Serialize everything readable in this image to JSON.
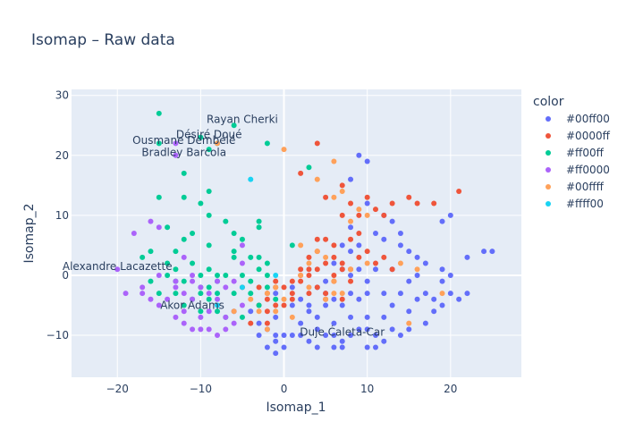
{
  "chart_data": {
    "type": "scatter",
    "title": "Isomap – Raw data",
    "xlabel": "Isomap_1",
    "ylabel": "Isomap_2",
    "xlim": [
      -25.5,
      28.5
    ],
    "ylim": [
      -17,
      31
    ],
    "xticks": [
      -20,
      -10,
      0,
      10,
      20
    ],
    "yticks": [
      -10,
      0,
      10,
      20,
      30
    ],
    "grid": true,
    "legend": {
      "title": "color",
      "placement": "right"
    },
    "series": [
      {
        "name": "#00ff00",
        "color": "#636efa",
        "points": [
          [
            0,
            -10
          ],
          [
            1,
            -10
          ],
          [
            -1,
            -11
          ],
          [
            -2,
            -12
          ],
          [
            -1,
            -13
          ],
          [
            0,
            -12
          ],
          [
            2,
            -10
          ],
          [
            3,
            -11
          ],
          [
            4,
            -9
          ],
          [
            5,
            -10
          ],
          [
            6,
            -10
          ],
          [
            7,
            -11
          ],
          [
            8,
            -10
          ],
          [
            9,
            -9
          ],
          [
            10,
            -9
          ],
          [
            11,
            -10
          ],
          [
            12,
            -11
          ],
          [
            13,
            -9
          ],
          [
            14,
            -10
          ],
          [
            2,
            -8
          ],
          [
            4,
            -7
          ],
          [
            6,
            -8
          ],
          [
            8,
            -7
          ],
          [
            10,
            -7
          ],
          [
            12,
            -7
          ],
          [
            15,
            -6
          ],
          [
            16,
            -4
          ],
          [
            17,
            -3
          ],
          [
            18,
            -4
          ],
          [
            19,
            -5
          ],
          [
            20,
            -3
          ],
          [
            21,
            -4
          ],
          [
            22,
            -3
          ],
          [
            14,
            -3
          ],
          [
            12,
            -3
          ],
          [
            10,
            -3
          ],
          [
            13,
            -5
          ],
          [
            15,
            -9
          ],
          [
            11,
            -12
          ],
          [
            10,
            -12
          ],
          [
            7,
            -12
          ],
          [
            6,
            -12
          ],
          [
            19,
            -1
          ],
          [
            20,
            0
          ],
          [
            22,
            3
          ],
          [
            24,
            4
          ],
          [
            25,
            4
          ],
          [
            19,
            9
          ],
          [
            20,
            10
          ],
          [
            19,
            1
          ],
          [
            17,
            2
          ],
          [
            16,
            3
          ],
          [
            15,
            4
          ],
          [
            14,
            5
          ],
          [
            12,
            6
          ],
          [
            11,
            7
          ],
          [
            13,
            9
          ],
          [
            14,
            7
          ],
          [
            12,
            10
          ],
          [
            10,
            12
          ],
          [
            8,
            8
          ],
          [
            9,
            5
          ],
          [
            9,
            1
          ],
          [
            8,
            0
          ],
          [
            8,
            4
          ],
          [
            7,
            5
          ],
          [
            7,
            1
          ],
          [
            6,
            2
          ],
          [
            10,
            -1
          ],
          [
            11,
            1
          ],
          [
            9,
            -4
          ],
          [
            7,
            -5
          ],
          [
            6,
            -4
          ],
          [
            5,
            -3
          ],
          [
            4,
            -2
          ],
          [
            3,
            -6
          ],
          [
            1,
            -5
          ],
          [
            -1,
            -7
          ],
          [
            -2,
            -9
          ],
          [
            -3,
            -8
          ],
          [
            -4,
            -6
          ],
          [
            -6,
            -6
          ],
          [
            -1,
            -3
          ],
          [
            1,
            -2
          ],
          [
            2,
            -4
          ],
          [
            3,
            -5
          ],
          [
            5,
            -5
          ],
          [
            17,
            -8
          ],
          [
            18,
            -6
          ],
          [
            13,
            1
          ],
          [
            16,
            0
          ],
          [
            15,
            -1
          ],
          [
            8,
            -3
          ],
          [
            4,
            -12
          ],
          [
            -3,
            -10
          ],
          [
            -1,
            -10
          ],
          [
            9,
            20
          ],
          [
            10,
            19
          ],
          [
            8,
            16
          ],
          [
            5,
            -1
          ]
        ]
      },
      {
        "name": "#0000ff",
        "color": "#ef553b",
        "points": [
          [
            4,
            22
          ],
          [
            2,
            17
          ],
          [
            5,
            13
          ],
          [
            7,
            10
          ],
          [
            8,
            12
          ],
          [
            10,
            13
          ],
          [
            11,
            11
          ],
          [
            9,
            10
          ],
          [
            12,
            10
          ],
          [
            13,
            12
          ],
          [
            15,
            13
          ],
          [
            16,
            12
          ],
          [
            18,
            12
          ],
          [
            21,
            14
          ],
          [
            7,
            15
          ],
          [
            5,
            6
          ],
          [
            4,
            6
          ],
          [
            6,
            5
          ],
          [
            8,
            6
          ],
          [
            9,
            7
          ],
          [
            4,
            4
          ],
          [
            3,
            3
          ],
          [
            5,
            2
          ],
          [
            6,
            3
          ],
          [
            3,
            0
          ],
          [
            2,
            -1
          ],
          [
            1,
            -1
          ],
          [
            0,
            -2
          ],
          [
            -1,
            -2
          ],
          [
            -2,
            -4
          ],
          [
            -3,
            -5
          ],
          [
            -1,
            -5
          ],
          [
            -2,
            -6
          ],
          [
            0,
            -5
          ],
          [
            1,
            -3
          ],
          [
            2,
            0
          ],
          [
            3,
            1
          ],
          [
            4,
            -2
          ],
          [
            5,
            -4
          ],
          [
            -2,
            -3
          ],
          [
            -3,
            -2
          ],
          [
            -5,
            -2
          ],
          [
            7,
            -4
          ],
          [
            6,
            -1
          ],
          [
            7,
            1
          ],
          [
            9,
            3
          ],
          [
            8,
            1
          ],
          [
            10,
            4
          ],
          [
            11,
            2
          ],
          [
            12,
            3
          ],
          [
            13,
            1
          ],
          [
            7,
            2
          ],
          [
            5,
            -3
          ],
          [
            -4,
            -8
          ],
          [
            -2,
            -8
          ],
          [
            8,
            -1
          ],
          [
            6,
            0
          ],
          [
            4,
            1
          ],
          [
            2,
            1
          ],
          [
            1,
            -4
          ],
          [
            3,
            -3
          ],
          [
            -1,
            -1
          ]
        ]
      },
      {
        "name": "#ff00ff",
        "color": "#00cc96",
        "points": [
          [
            -15,
            27
          ],
          [
            -6,
            25
          ],
          [
            -8,
            22
          ],
          [
            -2,
            22
          ],
          [
            -10,
            23
          ],
          [
            -9,
            21
          ],
          [
            -15,
            22
          ],
          [
            -12,
            17
          ],
          [
            -15,
            13
          ],
          [
            -12,
            13
          ],
          [
            -9,
            14
          ],
          [
            -10,
            12
          ],
          [
            -9,
            10
          ],
          [
            -7,
            9
          ],
          [
            -6,
            7
          ],
          [
            -3,
            9
          ],
          [
            -3,
            8
          ],
          [
            -5,
            6
          ],
          [
            -6,
            4
          ],
          [
            -9,
            5
          ],
          [
            -11,
            7
          ],
          [
            -14,
            8
          ],
          [
            -12,
            6
          ],
          [
            -13,
            4
          ],
          [
            -16,
            4
          ],
          [
            -17,
            3
          ],
          [
            -14,
            2
          ],
          [
            -13,
            1
          ],
          [
            -11,
            2
          ],
          [
            -9,
            1
          ],
          [
            -8,
            0
          ],
          [
            -7,
            0
          ],
          [
            -5,
            0
          ],
          [
            -3,
            1
          ],
          [
            -2,
            2
          ],
          [
            -2,
            0
          ],
          [
            -4,
            -1
          ],
          [
            -6,
            -3
          ],
          [
            -8,
            -3
          ],
          [
            -9,
            -2
          ],
          [
            -10,
            -2
          ],
          [
            -11,
            -4
          ],
          [
            -12,
            -5
          ],
          [
            -13,
            -3
          ],
          [
            -15,
            -3
          ],
          [
            -16,
            -1
          ],
          [
            -14,
            0
          ],
          [
            -12,
            -1
          ],
          [
            -9,
            -4
          ],
          [
            -8,
            -6
          ],
          [
            -7,
            -7
          ],
          [
            -5,
            -7
          ],
          [
            -4,
            -3
          ],
          [
            -3,
            -5
          ],
          [
            -1,
            -4
          ],
          [
            1,
            5
          ],
          [
            -10,
            -6
          ],
          [
            -13,
            -1
          ],
          [
            -10,
            -3
          ],
          [
            3,
            18
          ],
          [
            -8,
            -1
          ],
          [
            -6,
            3
          ],
          [
            -10,
            0
          ],
          [
            -4,
            3
          ],
          [
            -2,
            -2
          ],
          [
            -3,
            3
          ]
        ]
      },
      {
        "name": "#ff0000",
        "color": "#ab63fa",
        "points": [
          [
            -20,
            1
          ],
          [
            -19,
            -3
          ],
          [
            -17,
            -3
          ],
          [
            -18,
            7
          ],
          [
            -16,
            9
          ],
          [
            -15,
            8
          ],
          [
            -17,
            -2
          ],
          [
            -16,
            -4
          ],
          [
            -15,
            -5
          ],
          [
            -14,
            -4
          ],
          [
            -12,
            -3
          ],
          [
            -11,
            -4
          ],
          [
            -13,
            -7
          ],
          [
            -12,
            -8
          ],
          [
            -11,
            -9
          ],
          [
            -10,
            -9
          ],
          [
            -9,
            -9
          ],
          [
            -8,
            -10
          ],
          [
            -7,
            -9
          ],
          [
            -12,
            -6
          ],
          [
            -13,
            -1
          ],
          [
            -15,
            0
          ],
          [
            -13,
            -2
          ],
          [
            -11,
            -1
          ],
          [
            -10,
            -2
          ],
          [
            -9,
            -3
          ],
          [
            -8,
            -4
          ],
          [
            -7,
            -2
          ],
          [
            -7,
            -7
          ],
          [
            -9,
            -6
          ],
          [
            -10,
            -7
          ],
          [
            -13,
            20
          ],
          [
            -13,
            22
          ],
          [
            -12,
            3
          ],
          [
            -11,
            0
          ],
          [
            -8,
            -1
          ],
          [
            -5,
            5
          ],
          [
            -5,
            2
          ],
          [
            -6,
            -1
          ],
          [
            -5,
            -5
          ],
          [
            -6,
            -8
          ]
        ]
      },
      {
        "name": "#00ffff",
        "color": "#ffa15a",
        "points": [
          [
            0,
            21
          ],
          [
            6,
            19
          ],
          [
            4,
            16
          ],
          [
            7,
            14
          ],
          [
            6,
            13
          ],
          [
            8,
            9
          ],
          [
            9,
            11
          ],
          [
            10,
            10
          ],
          [
            10,
            2
          ],
          [
            14,
            2
          ],
          [
            15,
            -8
          ],
          [
            16,
            1
          ],
          [
            19,
            -3
          ],
          [
            2,
            5
          ],
          [
            2,
            0
          ],
          [
            0,
            -4
          ],
          [
            -1,
            -2
          ],
          [
            -2,
            -3
          ],
          [
            -3,
            -6
          ],
          [
            -2,
            -9
          ],
          [
            -6,
            -6
          ],
          [
            -1,
            -6
          ],
          [
            1,
            -7
          ],
          [
            3,
            -2
          ],
          [
            5,
            -4
          ],
          [
            6,
            -3
          ],
          [
            7,
            -3
          ],
          [
            3,
            2
          ],
          [
            4,
            4
          ],
          [
            5,
            3
          ],
          [
            6,
            -1
          ],
          [
            -8,
            22
          ],
          [
            -4,
            -4
          ],
          [
            8,
            1
          ]
        ]
      },
      {
        "name": "#ffff00",
        "color": "#19d3f3",
        "points": [
          [
            -4,
            16
          ],
          [
            -8,
            -5
          ],
          [
            -5,
            -2
          ],
          [
            -1,
            0
          ]
        ]
      }
    ],
    "annotations": [
      {
        "text": "Rayan Cherki",
        "x": -5,
        "y": 26
      },
      {
        "text": "Désiré Doué",
        "x": -9,
        "y": 23.5
      },
      {
        "text": "Ousmane Dembélé",
        "x": -12,
        "y": 22.5
      },
      {
        "text": "Bradley Barcola",
        "x": -12,
        "y": 20.5
      },
      {
        "text": "Alexandre Lacazette",
        "x": -20,
        "y": 1.5
      },
      {
        "text": "Akor Adams",
        "x": -11,
        "y": -5
      },
      {
        "text": "Duje Ćaleta-Car",
        "x": 7,
        "y": -9.5
      }
    ]
  }
}
